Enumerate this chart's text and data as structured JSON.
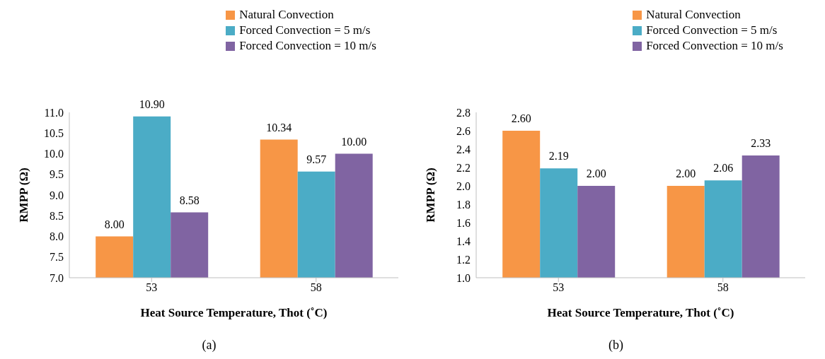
{
  "chart_data": [
    {
      "type": "bar",
      "xlabel": "Heat Source Temperature, Thot (˚C)",
      "ylabel": "RMPP (Ω)",
      "categories": [
        "53",
        "58"
      ],
      "legend": "top right",
      "ylim": [
        7.0,
        11.0
      ],
      "yticks": [
        {
          "value": 7.0,
          "label": "7.0"
        },
        {
          "value": 7.5,
          "label": "7.5"
        },
        {
          "value": 8.0,
          "label": "8.0"
        },
        {
          "value": 8.5,
          "label": "8.5"
        },
        {
          "value": 9.0,
          "label": "9.0"
        },
        {
          "value": 9.5,
          "label": "9.5"
        },
        {
          "value": 10.0,
          "label": "10.0"
        },
        {
          "value": 10.5,
          "label": "10.5"
        },
        {
          "value": 11.0,
          "label": "11.0"
        }
      ],
      "annotations": [
        "(a)"
      ],
      "series": [
        {
          "name": "Natural Convection",
          "color": "#f79646",
          "values": [
            8.0,
            10.34
          ],
          "value_labels": [
            "8.00",
            "10.34"
          ]
        },
        {
          "name": "Forced Convection = 5 m/s",
          "color": "#4bacc6",
          "values": [
            10.9,
            9.57
          ],
          "value_labels": [
            "10.90",
            "9.57"
          ]
        },
        {
          "name": "Forced Convection = 10 m/s",
          "color": "#8064a2",
          "values": [
            8.58,
            10.0
          ],
          "value_labels": [
            "8.58",
            "10.00"
          ]
        }
      ]
    },
    {
      "type": "bar",
      "xlabel": "Heat Source Temperature, Thot (˚C)",
      "ylabel": "RMPP (Ω)",
      "categories": [
        "53",
        "58"
      ],
      "legend": "top right",
      "ylim": [
        1.0,
        2.8
      ],
      "yticks": [
        {
          "value": 1.0,
          "label": "1.0"
        },
        {
          "value": 1.2,
          "label": "1.2"
        },
        {
          "value": 1.4,
          "label": "1.4"
        },
        {
          "value": 1.6,
          "label": "1.6"
        },
        {
          "value": 1.8,
          "label": "1.8"
        },
        {
          "value": 2.0,
          "label": "2.0"
        },
        {
          "value": 2.2,
          "label": "2.2"
        },
        {
          "value": 2.4,
          "label": "2.4"
        },
        {
          "value": 2.6,
          "label": "2.6"
        },
        {
          "value": 2.8,
          "label": "2.8"
        }
      ],
      "annotations": [
        "(b)"
      ],
      "series": [
        {
          "name": "Natural Convection",
          "color": "#f79646",
          "values": [
            2.6,
            2.0
          ],
          "value_labels": [
            "2.60",
            "2.00"
          ]
        },
        {
          "name": "Forced Convection = 5 m/s",
          "color": "#4bacc6",
          "values": [
            2.19,
            2.06
          ],
          "value_labels": [
            "2.19",
            "2.06"
          ]
        },
        {
          "name": "Forced Convection = 10 m/s",
          "color": "#8064a2",
          "values": [
            2.0,
            2.33
          ],
          "value_labels": [
            "2.00",
            "2.33"
          ]
        }
      ]
    }
  ]
}
